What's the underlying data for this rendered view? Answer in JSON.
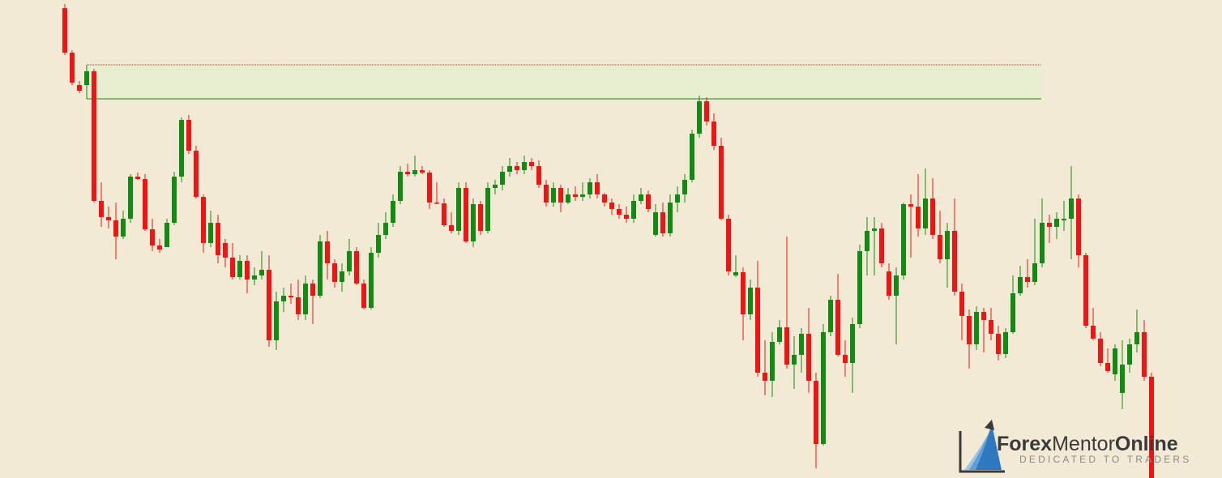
{
  "chart_data": {
    "type": "candlestick",
    "ylim": [
      0,
      590
    ],
    "up_color": "#138a13",
    "down_color": "#f01414",
    "zone": {
      "low": 468,
      "high": 510,
      "color": "#e6efcf"
    },
    "open": [
      580,
      525,
      485,
      485,
      502,
      342,
      322,
      318,
      298,
      320,
      372,
      369,
      307,
      287,
      285,
      315,
      372,
      442,
      404,
      347,
      290,
      315,
      290,
      272,
      248,
      268,
      245,
      250,
      257,
      170,
      218,
      225,
      223,
      202,
      240,
      225,
      292,
      265,
      242,
      255,
      280,
      240,
      210,
      278,
      300,
      315,
      342,
      378,
      375,
      380,
      377,
      340,
      339,
      312,
      305,
      358,
      292,
      338,
      305,
      358,
      362,
      378,
      385,
      380,
      390,
      385,
      362,
      340,
      358,
      340,
      350,
      347,
      350,
      365,
      350,
      340,
      332,
      325,
      320,
      342,
      350,
      300,
      328,
      302,
      340,
      350,
      368,
      425,
      465,
      440,
      410,
      320,
      250,
      254,
      202,
      235,
      130,
      120,
      168,
      186,
      140,
      152,
      178,
      120,
      42,
      180,
      220,
      152,
      142,
      190,
      280,
      305,
      308,
      255,
      225,
      250,
      338,
      335,
      308,
      345,
      300,
      270,
      305,
      230,
      200,
      165,
      205,
      195,
      178,
      153,
      180,
      228,
      248,
      242,
      265,
      315,
      310,
      318,
      320,
      345,
      275,
      188,
      172,
      142,
      128,
      105,
      140,
      165,
      180,
      125
    ],
    "high": [
      585,
      528,
      490,
      508,
      505,
      365,
      335,
      340,
      330,
      375,
      377,
      375,
      320,
      295,
      320,
      378,
      445,
      448,
      410,
      350,
      330,
      325,
      295,
      290,
      275,
      275,
      260,
      280,
      275,
      230,
      235,
      240,
      245,
      250,
      245,
      300,
      305,
      270,
      265,
      295,
      285,
      245,
      285,
      315,
      328,
      350,
      385,
      388,
      398,
      385,
      380,
      365,
      345,
      328,
      365,
      365,
      345,
      342,
      365,
      368,
      385,
      395,
      390,
      398,
      395,
      392,
      368,
      365,
      362,
      358,
      360,
      365,
      370,
      375,
      352,
      345,
      338,
      335,
      350,
      358,
      355,
      338,
      340,
      350,
      360,
      375,
      430,
      472,
      470,
      450,
      420,
      325,
      275,
      260,
      245,
      268,
      170,
      180,
      195,
      298,
      175,
      185,
      210,
      130,
      190,
      225,
      252,
      170,
      198,
      288,
      322,
      322,
      315,
      265,
      260,
      340,
      350,
      375,
      382,
      370,
      330,
      315,
      345,
      240,
      208,
      212,
      210,
      210,
      188,
      185,
      250,
      262,
      270,
      320,
      345,
      325,
      328,
      342,
      385,
      350,
      278,
      210,
      180,
      160,
      165,
      170,
      172,
      208,
      195,
      130
    ],
    "low": [
      522,
      485,
      475,
      472,
      340,
      310,
      308,
      270,
      295,
      315,
      368,
      305,
      280,
      278,
      285,
      312,
      365,
      400,
      345,
      278,
      285,
      265,
      260,
      245,
      245,
      228,
      238,
      245,
      162,
      158,
      205,
      215,
      195,
      195,
      190,
      222,
      245,
      235,
      230,
      250,
      238,
      208,
      208,
      272,
      295,
      310,
      338,
      372,
      372,
      375,
      332,
      338,
      310,
      302,
      300,
      290,
      285,
      300,
      302,
      350,
      355,
      372,
      375,
      375,
      380,
      358,
      335,
      335,
      328,
      338,
      342,
      342,
      345,
      345,
      335,
      325,
      320,
      315,
      315,
      338,
      328,
      298,
      298,
      298,
      328,
      340,
      365,
      420,
      435,
      405,
      318,
      250,
      248,
      170,
      195,
      125,
      102,
      100,
      165,
      135,
      110,
      130,
      105,
      12,
      40,
      175,
      150,
      125,
      105,
      185,
      250,
      250,
      260,
      220,
      165,
      245,
      272,
      298,
      300,
      295,
      265,
      235,
      225,
      170,
      135,
      158,
      155,
      170,
      145,
      148,
      178,
      225,
      235,
      238,
      260,
      290,
      295,
      305,
      270,
      260,
      185,
      170,
      138,
      130,
      120,
      85,
      130,
      155,
      120,
      0
    ],
    "close": [
      525,
      488,
      478,
      502,
      342,
      322,
      318,
      298,
      320,
      372,
      369,
      307,
      287,
      282,
      315,
      372,
      442,
      404,
      347,
      290,
      315,
      275,
      272,
      248,
      268,
      245,
      250,
      257,
      170,
      218,
      225,
      223,
      202,
      240,
      225,
      292,
      265,
      242,
      255,
      280,
      240,
      210,
      278,
      300,
      315,
      342,
      378,
      375,
      380,
      377,
      340,
      339,
      312,
      305,
      358,
      292,
      338,
      305,
      358,
      362,
      378,
      385,
      380,
      390,
      385,
      362,
      340,
      358,
      340,
      350,
      347,
      350,
      365,
      350,
      340,
      332,
      325,
      320,
      342,
      350,
      332,
      328,
      302,
      340,
      350,
      368,
      425,
      465,
      440,
      410,
      320,
      255,
      254,
      202,
      235,
      130,
      120,
      168,
      186,
      140,
      152,
      178,
      120,
      42,
      180,
      220,
      152,
      142,
      190,
      280,
      305,
      308,
      265,
      225,
      250,
      338,
      335,
      308,
      345,
      300,
      270,
      305,
      230,
      200,
      165,
      205,
      195,
      178,
      153,
      180,
      228,
      248,
      242,
      265,
      315,
      310,
      320,
      320,
      345,
      275,
      188,
      172,
      142,
      132,
      160,
      140,
      165,
      180,
      125,
      0
    ]
  },
  "watermark": {
    "brand": [
      "Forex",
      "Mentor",
      "Online"
    ],
    "tagline": "DEDICATED TO TRADERS"
  }
}
